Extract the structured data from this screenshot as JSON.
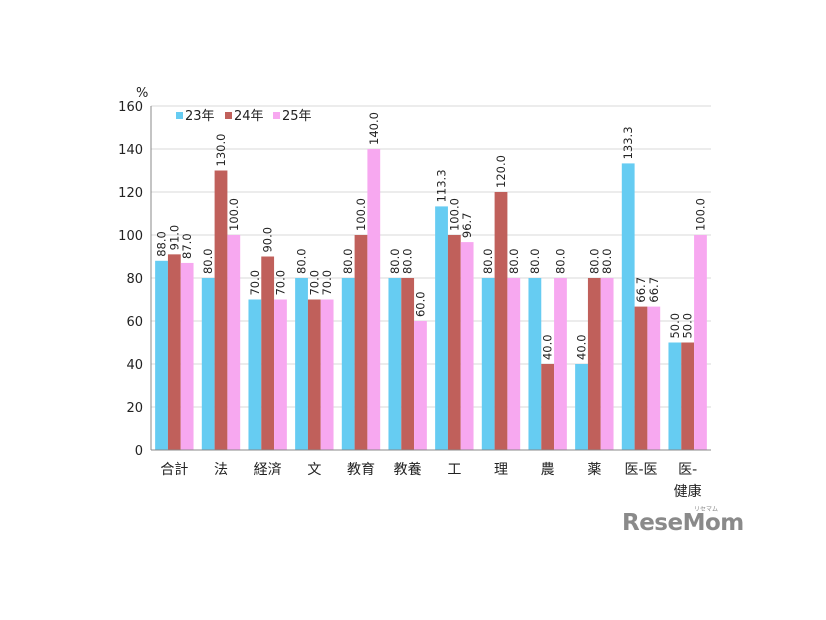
{
  "chart_data": {
    "type": "bar",
    "ylabel": "%",
    "ylim": [
      0,
      160
    ],
    "yticks": [
      "0",
      "20",
      "40",
      "60",
      "80",
      "100",
      "120",
      "140",
      "160"
    ],
    "grid": true,
    "legend_position": "top-left",
    "categories": [
      [
        "合計"
      ],
      [
        "法"
      ],
      [
        "経済"
      ],
      [
        "文"
      ],
      [
        "教育"
      ],
      [
        "教養"
      ],
      [
        "工"
      ],
      [
        "理"
      ],
      [
        "農"
      ],
      [
        "薬"
      ],
      [
        "医-医"
      ],
      [
        "医-",
        "健康"
      ]
    ],
    "series": [
      {
        "name": "23年",
        "color": "#66ccf2",
        "values": [
          88.0,
          80.0,
          70.0,
          80.0,
          80.0,
          80.0,
          113.3,
          80.0,
          80.0,
          40.0,
          133.3,
          50.0
        ],
        "labels": [
          "88.0",
          "80.0",
          "70.0",
          "80.0",
          "80.0",
          "80.0",
          "113.3",
          "80.0",
          "80.0",
          "40.0",
          "133.3",
          "50.0"
        ]
      },
      {
        "name": "24年",
        "color": "#c0605b",
        "values": [
          91.0,
          130.0,
          90.0,
          70.0,
          100.0,
          80.0,
          100.0,
          120.0,
          40.0,
          80.0,
          66.7,
          50.0
        ],
        "labels": [
          "91.0",
          "130.0",
          "90.0",
          "70.0",
          "100.0",
          "80.0",
          "100.0",
          "120.0",
          "40.0",
          "80.0",
          "66.7",
          "50.0"
        ]
      },
      {
        "name": "25年",
        "color": "#f7a8f0",
        "values": [
          87.0,
          100.0,
          70.0,
          70.0,
          140.0,
          60.0,
          96.7,
          80.0,
          80.0,
          80.0,
          66.7,
          100.0
        ],
        "labels": [
          "87.0",
          "100.0",
          "70.0",
          "70.0",
          "140.0",
          "60.0",
          "96.7",
          "80.0",
          "80.0",
          "80.0",
          "66.7",
          "100.0"
        ]
      }
    ]
  },
  "logo": {
    "text": "ReseMom",
    "small": "リセマム"
  }
}
